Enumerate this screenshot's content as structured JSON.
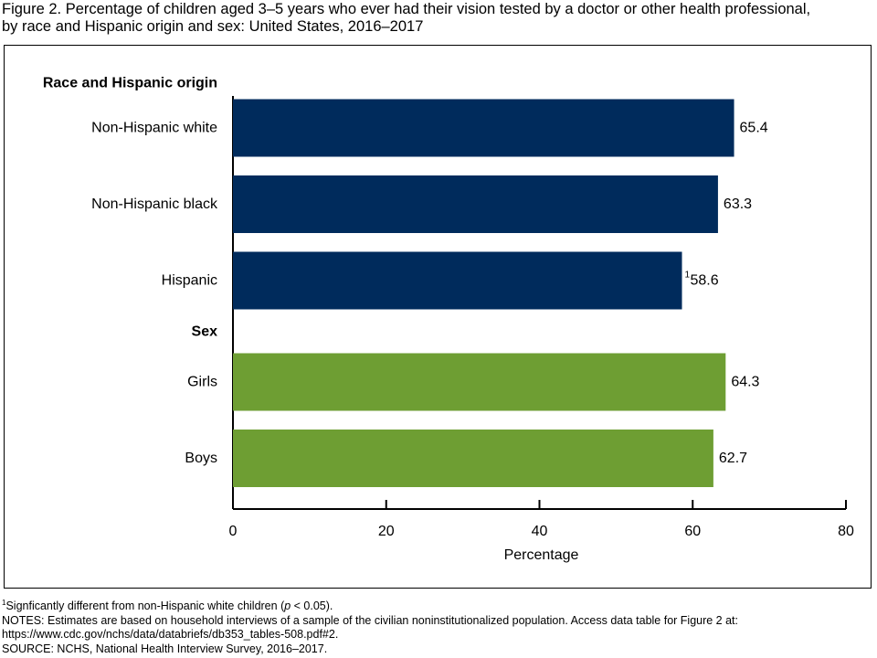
{
  "figure": {
    "title_line1": "Figure 2. Percentage of children aged 3–5 years who ever had their vision tested by a doctor or other health professional,",
    "title_line2": "by race and Hispanic origin and sex: United States, 2016–2017"
  },
  "colors": {
    "race": "#002b5c",
    "sex": "#6e9e33"
  },
  "chart_data": {
    "type": "bar",
    "orientation": "horizontal",
    "xlabel": "Percentage",
    "xlim": [
      0,
      80
    ],
    "xticks": [
      0,
      20,
      40,
      60,
      80
    ],
    "grid": false,
    "groups": [
      {
        "label": "Race and Hispanic origin",
        "color": "#002b5c",
        "bars": [
          {
            "category": "Non-Hispanic white",
            "value": 65.4,
            "value_label": "65.4",
            "footnote_mark": ""
          },
          {
            "category": "Non-Hispanic black",
            "value": 63.3,
            "value_label": "63.3",
            "footnote_mark": ""
          },
          {
            "category": "Hispanic",
            "value": 58.6,
            "value_label": "58.6",
            "footnote_mark": "1"
          }
        ]
      },
      {
        "label": "Sex",
        "color": "#6e9e33",
        "bars": [
          {
            "category": "Girls",
            "value": 64.3,
            "value_label": "64.3",
            "footnote_mark": ""
          },
          {
            "category": "Boys",
            "value": 62.7,
            "value_label": "62.7",
            "footnote_mark": ""
          }
        ]
      }
    ]
  },
  "footnotes": {
    "fn1_mark": "1",
    "fn1_text_a": "Signficantly different from non-Hispanic white children (",
    "fn1_p": "p",
    "fn1_text_b": " < 0.05).",
    "notes_line1": "NOTES: Estimates are based on household interviews of a sample of the civilian noninstitutionalized population. Access data table for Figure 2 at:",
    "notes_line2": "https://www.cdc.gov/nchs/data/databriefs/db353_tables-508.pdf#2.",
    "source": "SOURCE: NCHS, National Health Interview Survey, 2016–2017."
  }
}
